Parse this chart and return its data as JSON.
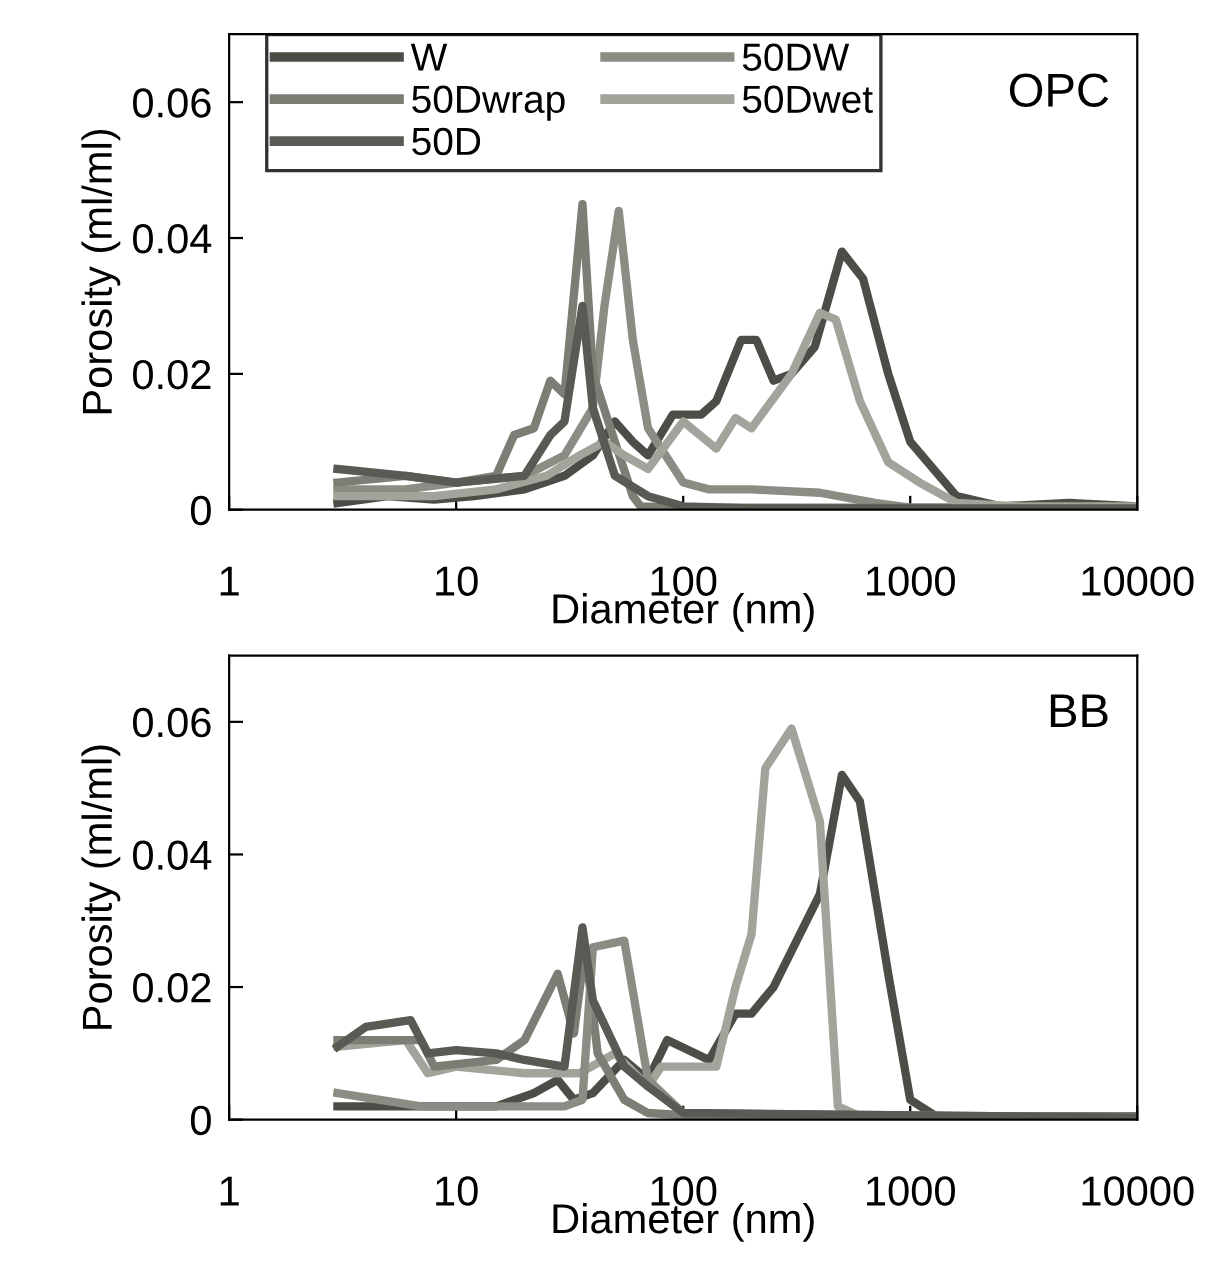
{
  "chart_data": [
    {
      "type": "line",
      "xlabel": "Diameter (nm)",
      "ylabel": "Porosity (ml/ml)",
      "log": "x",
      "xlim": [
        1,
        10000
      ],
      "xticks": [
        1,
        10,
        100,
        1000,
        10000
      ],
      "ylim": [
        0,
        0.07
      ],
      "yticks": [
        0,
        0.02,
        0.04,
        0.06
      ],
      "legend": "top left",
      "grid": false,
      "annotations": [
        "OPC"
      ],
      "series": [
        {
          "name": "W",
          "color": "#4d4d47",
          "x": [
            3,
            5,
            8,
            12,
            20,
            30,
            40,
            50,
            60,
            70,
            90,
            120,
            140,
            180,
            210,
            250,
            300,
            380,
            500,
            620,
            800,
            1000,
            1600,
            2500,
            5000,
            10000
          ],
          "values": [
            0.001,
            0.002,
            0.0015,
            0.002,
            0.003,
            0.005,
            0.008,
            0.013,
            0.01,
            0.008,
            0.014,
            0.014,
            0.016,
            0.025,
            0.025,
            0.019,
            0.02,
            0.024,
            0.038,
            0.034,
            0.02,
            0.01,
            0.002,
            0.0005,
            0.001,
            0.0005
          ]
        },
        {
          "name": "50DW",
          "color": "#8c8c84",
          "x": [
            3,
            6,
            10,
            20,
            30,
            40,
            45,
            52,
            60,
            70,
            100,
            130,
            200,
            400,
            700,
            1000,
            10000
          ],
          "values": [
            0.003,
            0.003,
            0.004,
            0.005,
            0.008,
            0.015,
            0.03,
            0.044,
            0.025,
            0.012,
            0.004,
            0.003,
            0.003,
            0.0025,
            0.001,
            0.0003,
            0.0003
          ]
        },
        {
          "name": "50Dwrap",
          "color": "#7d7d75",
          "x": [
            3,
            6,
            10,
            15,
            18,
            22,
            26,
            30,
            36,
            40,
            50,
            60,
            65,
            100,
            10000
          ],
          "values": [
            0.004,
            0.005,
            0.004,
            0.005,
            0.011,
            0.012,
            0.019,
            0.017,
            0.045,
            0.02,
            0.01,
            0.002,
            0.0005,
            0.0003,
            0.0003
          ]
        },
        {
          "name": "50Dwet",
          "color": "#a3a39b",
          "x": [
            3,
            8,
            15,
            25,
            35,
            45,
            55,
            70,
            100,
            140,
            170,
            200,
            300,
            400,
            470,
            600,
            800,
            1100,
            1600,
            3000,
            10000
          ],
          "values": [
            0.002,
            0.002,
            0.003,
            0.005,
            0.008,
            0.01,
            0.008,
            0.006,
            0.013,
            0.009,
            0.0135,
            0.012,
            0.02,
            0.029,
            0.028,
            0.016,
            0.007,
            0.004,
            0.001,
            0.0005,
            0.0005
          ]
        },
        {
          "name": "50D",
          "color": "#5a5a54",
          "x": [
            3,
            6,
            10,
            20,
            26,
            30,
            36,
            40,
            50,
            70,
            100,
            200,
            10000
          ],
          "values": [
            0.006,
            0.005,
            0.004,
            0.005,
            0.011,
            0.013,
            0.03,
            0.015,
            0.005,
            0.002,
            0.0005,
            0.0002,
            0.0002
          ]
        }
      ]
    },
    {
      "type": "line",
      "xlabel": "Diameter (nm)",
      "ylabel": "Porosity (ml/ml)",
      "log": "x",
      "xlim": [
        1,
        10000
      ],
      "xticks": [
        1,
        10,
        100,
        1000,
        10000
      ],
      "ylim": [
        0,
        0.07
      ],
      "yticks": [
        0,
        0.02,
        0.04,
        0.06
      ],
      "grid": false,
      "annotations": [
        "BB"
      ],
      "series": [
        {
          "color": "#4d4d47",
          "x": [
            3,
            15,
            22,
            28,
            33,
            40,
            55,
            70,
            85,
            130,
            170,
            200,
            250,
            400,
            500,
            600,
            800,
            1000,
            1300,
            10000
          ],
          "values": [
            0.002,
            0.002,
            0.004,
            0.006,
            0.003,
            0.004,
            0.009,
            0.006,
            0.012,
            0.009,
            0.016,
            0.016,
            0.02,
            0.034,
            0.052,
            0.048,
            0.022,
            0.003,
            0.0005,
            0.0005
          ]
        },
        {
          "color": "#a3a39b",
          "x": [
            3,
            6,
            7.5,
            10,
            20,
            35,
            50,
            70,
            80,
            140,
            170,
            200,
            230,
            300,
            400,
            480,
            600,
            10000
          ],
          "values": [
            0.011,
            0.012,
            0.007,
            0.008,
            0.007,
            0.007,
            0.01,
            0.005,
            0.008,
            0.008,
            0.02,
            0.028,
            0.053,
            0.059,
            0.045,
            0.002,
            0.0005,
            0.0003
          ]
        },
        {
          "color": "#7d7d75",
          "x": [
            3,
            7,
            8,
            15,
            20,
            28,
            33,
            37,
            42,
            55,
            70,
            150,
            10000
          ],
          "values": [
            0.012,
            0.012,
            0.008,
            0.009,
            0.012,
            0.022,
            0.013,
            0.026,
            0.01,
            0.003,
            0.001,
            0.0003,
            0.0003
          ]
        },
        {
          "color": "#8c8c84",
          "x": [
            3,
            7,
            30,
            36,
            40,
            55,
            70,
            100,
            10000
          ],
          "values": [
            0.004,
            0.002,
            0.002,
            0.003,
            0.026,
            0.027,
            0.006,
            0.001,
            0.0003
          ]
        },
        {
          "color": "#5a5a54",
          "x": [
            3,
            4,
            6.3,
            7.5,
            10,
            15,
            20,
            30,
            36,
            40,
            55,
            70,
            100,
            10000
          ],
          "values": [
            0.011,
            0.014,
            0.015,
            0.01,
            0.0105,
            0.01,
            0.009,
            0.008,
            0.029,
            0.018,
            0.008,
            0.005,
            0.001,
            0.0003
          ]
        }
      ]
    }
  ]
}
